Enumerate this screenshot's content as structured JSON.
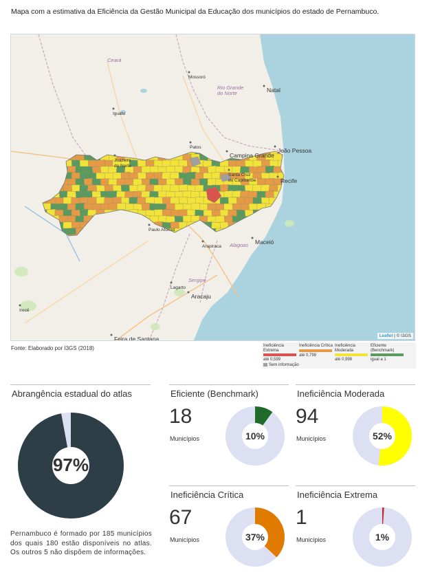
{
  "title": "Mapa com a estimativa da Eficiência da Gestão Municipal da Educação dos municípios do estado de Pernambuco.",
  "map": {
    "attribution_link": "Leaflet",
    "attribution_text": " | © I3GS",
    "places": [
      {
        "name": "Ceará",
        "style": "state"
      },
      {
        "name": "Mossoró",
        "style": "city"
      },
      {
        "name": "Rio Grande do Norte",
        "style": "state"
      },
      {
        "name": "Natal",
        "style": "capital"
      },
      {
        "name": "Iguatu",
        "style": "city"
      },
      {
        "name": "Juazeiro do Norte",
        "style": "city"
      },
      {
        "name": "Patos",
        "style": "city"
      },
      {
        "name": "Campina Grande",
        "style": "capital"
      },
      {
        "name": "João Pessoa",
        "style": "capital"
      },
      {
        "name": "Santa Cruz do Capibaribe",
        "style": "city"
      },
      {
        "name": "Recife",
        "style": "capital"
      },
      {
        "name": "Paulo Afonso",
        "style": "city"
      },
      {
        "name": "Arapiraca",
        "style": "city"
      },
      {
        "name": "Alagoas",
        "style": "state"
      },
      {
        "name": "Maceió",
        "style": "capital"
      },
      {
        "name": "Sergipe",
        "style": "state"
      },
      {
        "name": "Lagarto",
        "style": "city"
      },
      {
        "name": "Aracaju",
        "style": "capital"
      },
      {
        "name": "Irecê",
        "style": "city"
      },
      {
        "name": "Feira de Santana",
        "style": "capital"
      }
    ]
  },
  "source": "Fonte: Elaborado por I3GS (2018)",
  "legend": {
    "items": [
      {
        "label": "Ineficiência Extrema",
        "value": "até 0,599",
        "color": "#d9534f"
      },
      {
        "label": "Ineficiência Crítica",
        "value": "até 0,799",
        "color": "#e59a46"
      },
      {
        "label": "Ineficiência Moderada",
        "value": "até 0,998",
        "color": "#f2e33a"
      },
      {
        "label": "Eficiente (Benchmark)",
        "value": "igual a 1",
        "color": "#5a9a5e"
      }
    ],
    "no_data": "Sem informação",
    "no_data_color": "#a0a0a0"
  },
  "coverage": {
    "title": "Abrangência estadual do atlas",
    "percent_label": "97%",
    "percent": 97,
    "color": "#2d3e47",
    "rest_color": "#dde0f2",
    "description": "Pernambuco é formado por 185 municípios dos quais 180 estão disponíveis no atlas. Os outros 5 não dispõem de informações."
  },
  "stats": [
    {
      "title": "Eficiente (Benchmark)",
      "count": "18",
      "unit": "Municípios",
      "percent_label": "10%",
      "percent": 10,
      "color": "#1f6b2a"
    },
    {
      "title": "Ineficiência Moderada",
      "count": "94",
      "unit": "Municípios",
      "percent_label": "52%",
      "percent": 52,
      "color": "#ffff00"
    },
    {
      "title": "Ineficiência Crítica",
      "count": "67",
      "unit": "Municípios",
      "percent_label": "37%",
      "percent": 37,
      "color": "#e07b00"
    },
    {
      "title": "Ineficiência Extrema",
      "count": "1",
      "unit": "Municípios",
      "percent_label": "1%",
      "percent": 1,
      "color": "#c0282d"
    }
  ],
  "donut_track_color": "#dde0f2"
}
